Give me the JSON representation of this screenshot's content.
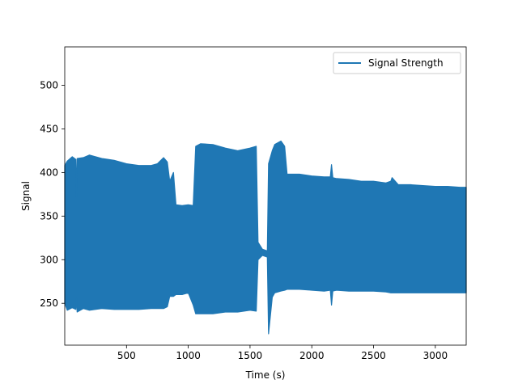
{
  "chart_data": {
    "type": "line",
    "title": "",
    "xlabel": "Time (s)",
    "ylabel": "Signal",
    "xlim": [
      0,
      3250
    ],
    "ylim": [
      202,
      544
    ],
    "x_ticks": [
      500,
      1000,
      1500,
      2000,
      2500,
      3000
    ],
    "y_ticks": [
      250,
      300,
      350,
      400,
      450,
      500
    ],
    "grid": false,
    "legend_position": "top-right",
    "series": [
      {
        "name": "Signal Strength",
        "color": "#1f77b4",
        "envelope": {
          "x": [
            0,
            20,
            60,
            90,
            95,
            100,
            150,
            200,
            300,
            400,
            500,
            600,
            700,
            750,
            800,
            830,
            850,
            880,
            900,
            950,
            1000,
            1040,
            1060,
            1100,
            1200,
            1300,
            1400,
            1500,
            1550,
            1565,
            1600,
            1640,
            1650,
            1680,
            1700,
            1750,
            1780,
            1800,
            1900,
            2000,
            2100,
            2150,
            2160,
            2170,
            2200,
            2300,
            2400,
            2500,
            2600,
            2640,
            2650,
            2700,
            2800,
            2900,
            3000,
            3100,
            3200,
            3250
          ],
          "upper": [
            408,
            413,
            418,
            415,
            372,
            416,
            417,
            420,
            416,
            414,
            410,
            408,
            408,
            410,
            417,
            412,
            390,
            400,
            363,
            362,
            363,
            362,
            430,
            433,
            432,
            428,
            425,
            428,
            430,
            320,
            312,
            310,
            410,
            425,
            432,
            436,
            430,
            398,
            398,
            396,
            395,
            395,
            409,
            394,
            393,
            392,
            390,
            390,
            388,
            390,
            394,
            386,
            386,
            385,
            384,
            384,
            383,
            383
          ],
          "lower": [
            250,
            242,
            245,
            243,
            256,
            240,
            244,
            242,
            244,
            243,
            243,
            243,
            244,
            244,
            244,
            246,
            258,
            258,
            260,
            260,
            262,
            248,
            238,
            238,
            238,
            240,
            240,
            242,
            241,
            300,
            305,
            303,
            215,
            257,
            262,
            264,
            265,
            266,
            266,
            265,
            264,
            265,
            248,
            264,
            265,
            264,
            264,
            264,
            263,
            262,
            262,
            262,
            262,
            262,
            262,
            262,
            262,
            262
          ]
        }
      }
    ]
  }
}
